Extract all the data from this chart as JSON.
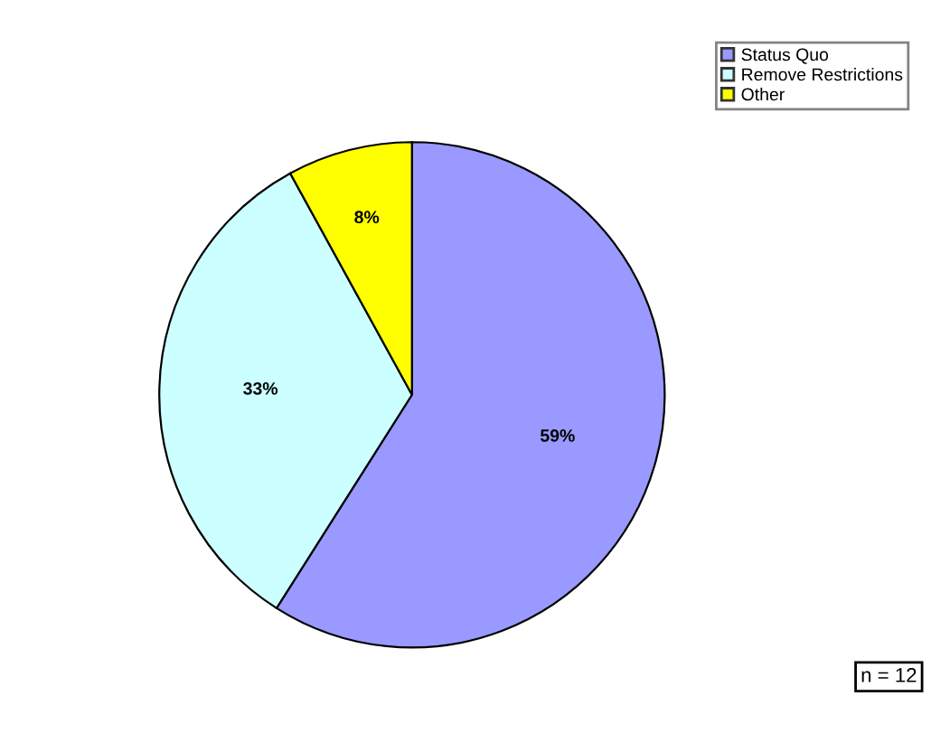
{
  "chart_data": {
    "type": "pie",
    "categories": [
      "Status Quo",
      "Remove Restrictions",
      "Other"
    ],
    "values": [
      59,
      33,
      8
    ],
    "colors": [
      "#9999ff",
      "#ccffff",
      "#ffff00"
    ],
    "value_labels": [
      "59%",
      "33%",
      "8%"
    ],
    "legend": "top right",
    "annotations": [
      "n = 12"
    ]
  }
}
